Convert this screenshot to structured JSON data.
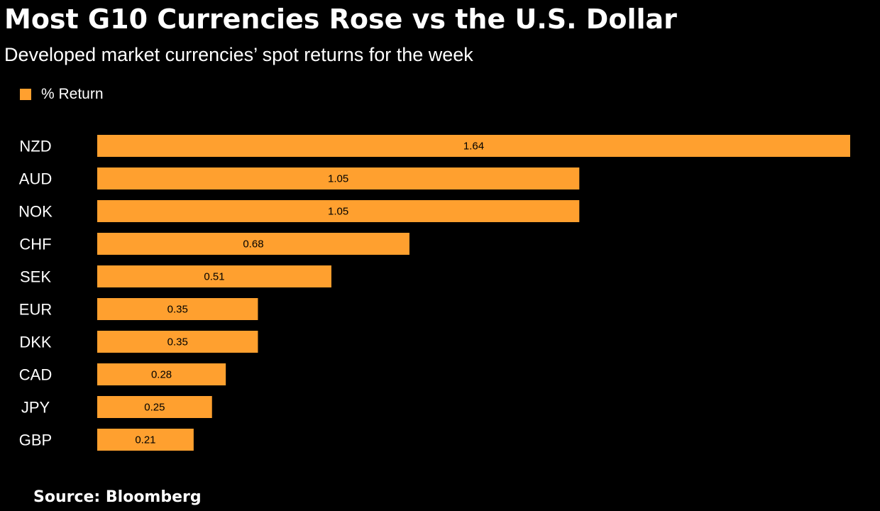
{
  "header": {
    "title": "Most G10 Currencies Rose vs the U.S. Dollar",
    "subtitle": "Developed market currencies’ spot returns for the week"
  },
  "footer": {
    "source": "Source:  Bloomberg"
  },
  "colors": {
    "background": "#000000",
    "bar": "#ffa02f",
    "text": "#ffffff",
    "label": "#000000"
  },
  "chart_data": {
    "type": "bar",
    "orientation": "horizontal",
    "categories": [
      "NZD",
      "AUD",
      "NOK",
      "CHF",
      "SEK",
      "EUR",
      "DKK",
      "CAD",
      "JPY",
      "GBP"
    ],
    "series": [
      {
        "name": "% Return",
        "values": [
          1.64,
          1.05,
          1.05,
          0.68,
          0.51,
          0.35,
          0.35,
          0.28,
          0.25,
          0.21
        ],
        "labels": [
          "1.64",
          "1.05",
          "1.05",
          "0.68",
          "0.51",
          "0.35",
          "0.35",
          "0.28",
          "0.25",
          "0.21"
        ]
      }
    ],
    "legend": "top-left",
    "grid": false,
    "data_labels": "inside-center"
  }
}
